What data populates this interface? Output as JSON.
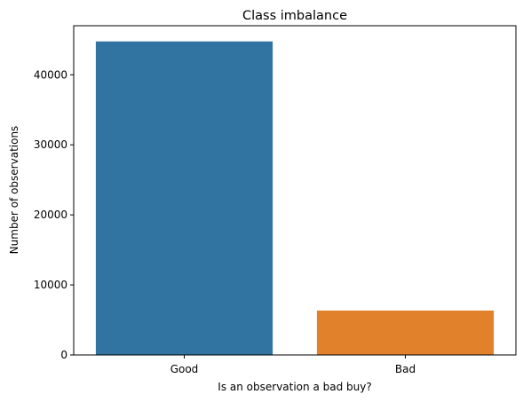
{
  "chart_data": {
    "type": "bar",
    "title": "Class imbalance",
    "xlabel": "Is an observation a bad buy?",
    "ylabel": "Number of observations",
    "categories": [
      "Good",
      "Bad"
    ],
    "values": [
      44760,
      6340
    ],
    "colors": [
      "#3274a1",
      "#e1812c"
    ],
    "ylim": [
      0,
      47000
    ],
    "yticks": [
      0,
      10000,
      20000,
      30000,
      40000
    ],
    "ytick_labels": [
      "0",
      "10000",
      "20000",
      "30000",
      "40000"
    ],
    "grid": false,
    "legend": "none"
  }
}
